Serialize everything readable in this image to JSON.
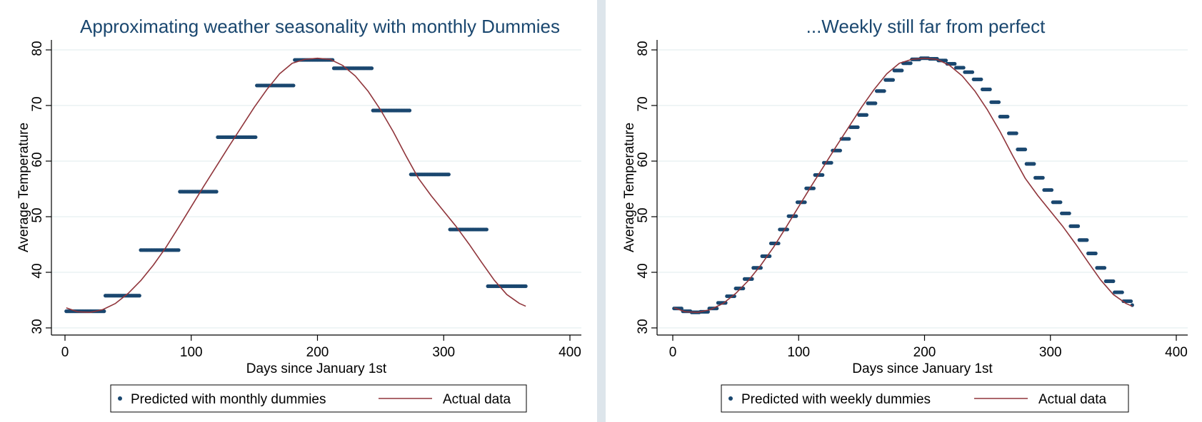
{
  "colors": {
    "background": "#dde5eb",
    "panel": "#ffffff",
    "title": "#1a476f",
    "predicted": "#1a476f",
    "actual": "#90353b",
    "grid": "#eaf2f3"
  },
  "chart_data": [
    {
      "type": "line",
      "title": "Approximating weather seasonality with monthly Dummies",
      "xlabel": "Days since January 1st",
      "ylabel": "Average Temperature",
      "xlim": [
        0,
        400
      ],
      "ylim": [
        30,
        80
      ],
      "x_ticks": [
        "0",
        "100",
        "200",
        "300",
        "400"
      ],
      "y_ticks": [
        "30",
        "40",
        "50",
        "60",
        "70",
        "80"
      ],
      "grid": true,
      "legend_position": "bottom",
      "series": [
        {
          "name": "Predicted with monthly dummies",
          "style": "step-markers",
          "segments": [
            {
              "x_start": 1,
              "x_end": 31,
              "y": 33.0
            },
            {
              "x_start": 32,
              "x_end": 59,
              "y": 35.8
            },
            {
              "x_start": 60,
              "x_end": 90,
              "y": 44.0
            },
            {
              "x_start": 91,
              "x_end": 120,
              "y": 54.5
            },
            {
              "x_start": 121,
              "x_end": 151,
              "y": 64.3
            },
            {
              "x_start": 152,
              "x_end": 181,
              "y": 73.6
            },
            {
              "x_start": 182,
              "x_end": 212,
              "y": 78.2
            },
            {
              "x_start": 213,
              "x_end": 243,
              "y": 76.7
            },
            {
              "x_start": 244,
              "x_end": 273,
              "y": 69.1
            },
            {
              "x_start": 274,
              "x_end": 304,
              "y": 57.6
            },
            {
              "x_start": 305,
              "x_end": 334,
              "y": 47.7
            },
            {
              "x_start": 335,
              "x_end": 365,
              "y": 37.5
            }
          ]
        },
        {
          "name": "Actual data",
          "style": "line",
          "x": [
            1,
            10,
            20,
            30,
            40,
            50,
            60,
            70,
            80,
            90,
            100,
            110,
            120,
            130,
            140,
            150,
            160,
            170,
            180,
            190,
            200,
            210,
            220,
            230,
            240,
            250,
            260,
            270,
            280,
            290,
            300,
            310,
            320,
            330,
            340,
            350,
            360,
            365
          ],
          "y": [
            33.6,
            32.9,
            32.8,
            33.3,
            34.4,
            36.2,
            38.5,
            41.3,
            44.5,
            48.1,
            51.8,
            55.5,
            59.1,
            62.7,
            66.2,
            69.7,
            72.9,
            75.7,
            77.6,
            78.3,
            78.5,
            78.3,
            77.2,
            75.3,
            72.6,
            69.2,
            65.3,
            61.0,
            56.9,
            53.8,
            51.0,
            48.2,
            45.1,
            41.8,
            38.6,
            36.0,
            34.4,
            33.9
          ]
        }
      ]
    },
    {
      "type": "line",
      "title": "...Weekly still far from perfect",
      "xlabel": "Days since January 1st",
      "ylabel": "Average Temperature",
      "xlim": [
        0,
        400
      ],
      "ylim": [
        30,
        80
      ],
      "x_ticks": [
        "0",
        "100",
        "200",
        "300",
        "400"
      ],
      "y_ticks": [
        "30",
        "40",
        "50",
        "60",
        "70",
        "80"
      ],
      "grid": true,
      "legend_position": "bottom",
      "series": [
        {
          "name": "Predicted with weekly dummies",
          "style": "step-markers",
          "week_length_days": 7,
          "values": [
            33.5,
            33.0,
            32.8,
            32.9,
            33.5,
            34.5,
            35.7,
            37.1,
            38.8,
            40.8,
            42.9,
            45.2,
            47.7,
            50.1,
            52.6,
            55.1,
            57.5,
            59.7,
            61.9,
            64.0,
            66.1,
            68.3,
            70.4,
            72.6,
            74.6,
            76.3,
            77.6,
            78.3,
            78.5,
            78.4,
            78.1,
            77.5,
            76.8,
            76.0,
            74.7,
            72.9,
            70.6,
            68.0,
            65.0,
            62.1,
            59.5,
            57.0,
            54.8,
            52.6,
            50.6,
            48.3,
            45.8,
            43.4,
            40.8,
            38.4,
            36.4,
            34.8,
            34.1
          ]
        },
        {
          "name": "Actual data",
          "style": "line",
          "x": [
            1,
            10,
            20,
            30,
            40,
            50,
            60,
            70,
            80,
            90,
            100,
            110,
            120,
            130,
            140,
            150,
            160,
            170,
            180,
            190,
            200,
            210,
            220,
            230,
            240,
            250,
            260,
            270,
            280,
            290,
            300,
            310,
            320,
            330,
            340,
            350,
            360,
            365
          ],
          "y": [
            33.6,
            32.9,
            32.8,
            33.3,
            34.4,
            36.2,
            38.5,
            41.3,
            44.5,
            48.1,
            51.8,
            55.5,
            59.1,
            62.7,
            66.2,
            69.7,
            72.9,
            75.7,
            77.6,
            78.3,
            78.5,
            78.3,
            77.2,
            75.3,
            72.6,
            69.2,
            65.3,
            61.0,
            56.9,
            53.8,
            51.0,
            48.2,
            45.1,
            41.8,
            38.6,
            36.0,
            34.4,
            33.9
          ]
        }
      ]
    }
  ]
}
